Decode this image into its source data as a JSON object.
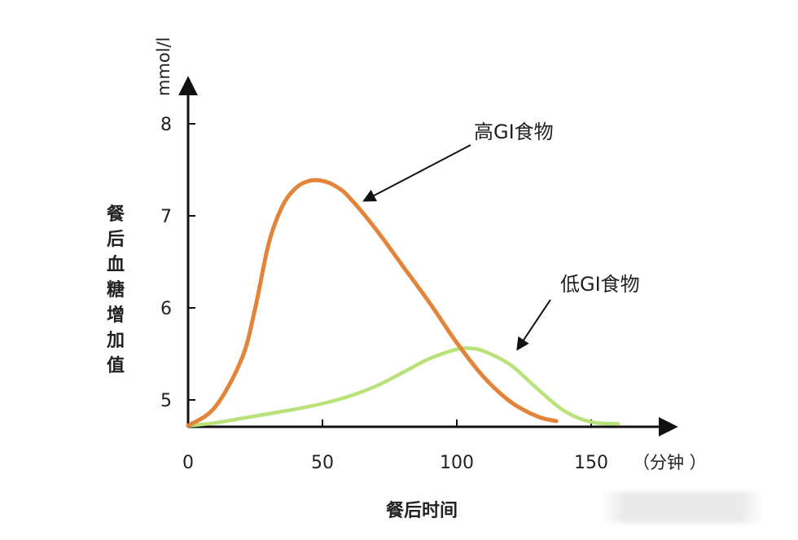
{
  "chart_data": {
    "type": "line",
    "title": "",
    "xlabel": "餐后时间",
    "ylabel": "餐后血糖增加值",
    "x_unit": "（分钟 ）",
    "y_unit": "mmol/l",
    "xlim": [
      0,
      180
    ],
    "ylim": [
      4.7,
      8.4
    ],
    "x_ticks": [
      "0",
      "50",
      "100",
      "150"
    ],
    "y_ticks": [
      "5",
      "6",
      "7",
      "8"
    ],
    "grid": false,
    "series": [
      {
        "name": "高GI食物",
        "color": "#e3843b",
        "x": [
          0,
          10,
          20,
          25,
          30,
          35,
          40,
          45,
          50,
          55,
          60,
          70,
          80,
          90,
          100,
          110,
          120,
          130,
          137
        ],
        "y": [
          4.72,
          4.92,
          5.45,
          6.0,
          6.7,
          7.1,
          7.3,
          7.38,
          7.38,
          7.32,
          7.2,
          6.85,
          6.45,
          6.05,
          5.62,
          5.25,
          4.98,
          4.82,
          4.77
        ]
      },
      {
        "name": "低GI食物",
        "color": "#b9e37a",
        "x": [
          0,
          10,
          20,
          30,
          40,
          50,
          60,
          70,
          80,
          90,
          100,
          105,
          110,
          120,
          130,
          140,
          150,
          160
        ],
        "y": [
          4.72,
          4.75,
          4.8,
          4.85,
          4.9,
          4.96,
          5.04,
          5.15,
          5.3,
          5.45,
          5.55,
          5.56,
          5.53,
          5.38,
          5.12,
          4.88,
          4.76,
          4.74
        ]
      }
    ],
    "annotations": [
      {
        "text": "高GI食物",
        "points_to": "高GI食物"
      },
      {
        "text": "低GI食物",
        "points_to": "低GI食物"
      }
    ]
  }
}
